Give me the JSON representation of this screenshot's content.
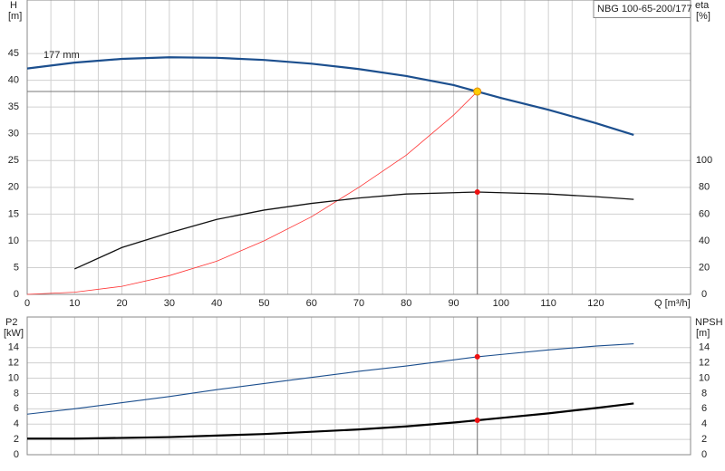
{
  "chart_data": [
    {
      "type": "line",
      "title": "NBG 100-65-200/177",
      "curve_label": "177 mm",
      "ylabel": "H",
      "yunit": "[m]",
      "y2label": "eta",
      "y2unit": "[%]",
      "xlabel": "Q [m³/h]",
      "xlim": [
        0,
        140
      ],
      "xticks": [
        0,
        10,
        20,
        30,
        40,
        50,
        60,
        70,
        80,
        90,
        100,
        110,
        120
      ],
      "ylim": [
        0,
        55
      ],
      "yticks": [
        0,
        5,
        10,
        15,
        20,
        25,
        30,
        35,
        40,
        45
      ],
      "y2lim": [
        0,
        220
      ],
      "y2ticks": [
        0,
        20,
        40,
        60,
        80,
        100
      ],
      "grid": true,
      "series": [
        {
          "color": "#1c4f8e",
          "width": 2.2,
          "x": [
            0,
            10,
            20,
            30,
            40,
            50,
            60,
            70,
            80,
            90,
            95,
            100,
            110,
            120,
            128
          ],
          "values": [
            42.2,
            43.3,
            44.0,
            44.3,
            44.2,
            43.8,
            43.1,
            42.1,
            40.8,
            39.1,
            37.9,
            36.7,
            34.5,
            32.0,
            29.8
          ]
        },
        {
          "color": "#ff3333",
          "width": 0.8,
          "x": [
            0,
            10,
            20,
            30,
            40,
            50,
            60,
            70,
            80,
            90,
            95
          ],
          "values": [
            0,
            0.4,
            1.5,
            3.5,
            6.2,
            10,
            14.5,
            20,
            26,
            33.5,
            37.9
          ]
        },
        {
          "color": "#111111",
          "width": 1.3,
          "axis": "y2",
          "x": [
            10,
            20,
            30,
            40,
            50,
            60,
            70,
            80,
            90,
            95,
            100,
            110,
            120,
            128
          ],
          "values": [
            19,
            35,
            46,
            56,
            63,
            68,
            72,
            75,
            76,
            76.5,
            76,
            75,
            73,
            71
          ]
        }
      ],
      "duty_point": {
        "x": 95,
        "y": 37.9,
        "y2": 76.5,
        "y_color": "#ffcc00",
        "y2_color": "#ee1111"
      }
    },
    {
      "type": "line",
      "ylabel": "P2",
      "yunit": "[kW]",
      "y2label": "NPSH",
      "y2unit": "[m]",
      "xlim": [
        0,
        140
      ],
      "xgrid": [
        0,
        10,
        20,
        30,
        40,
        50,
        60,
        70,
        80,
        90,
        100,
        110,
        120
      ],
      "ylim": [
        0,
        18
      ],
      "yticks": [
        0,
        2,
        4,
        6,
        8,
        10,
        12,
        14
      ],
      "y2lim": [
        0,
        18
      ],
      "y2ticks": [
        0,
        2,
        4,
        6,
        8,
        10,
        12,
        14
      ],
      "grid": true,
      "series": [
        {
          "color": "#1c4f8e",
          "width": 1.1,
          "x": [
            0,
            10,
            20,
            30,
            40,
            50,
            60,
            70,
            80,
            90,
            95,
            100,
            110,
            120,
            128
          ],
          "values": [
            5.3,
            6.0,
            6.8,
            7.6,
            8.5,
            9.3,
            10.1,
            10.9,
            11.6,
            12.4,
            12.8,
            13.1,
            13.7,
            14.2,
            14.5
          ]
        },
        {
          "color": "#000000",
          "width": 2.2,
          "axis": "y2",
          "x": [
            0,
            10,
            20,
            30,
            40,
            50,
            60,
            70,
            80,
            90,
            95,
            100,
            110,
            120,
            128
          ],
          "values": [
            2.1,
            2.1,
            2.2,
            2.3,
            2.5,
            2.7,
            3.0,
            3.3,
            3.7,
            4.2,
            4.5,
            4.8,
            5.4,
            6.1,
            6.7
          ]
        }
      ],
      "duty_point": {
        "x": 95,
        "y": 12.8,
        "y2": 4.5,
        "y_color": "#ee1111",
        "y2_color": "#ee1111"
      }
    }
  ]
}
